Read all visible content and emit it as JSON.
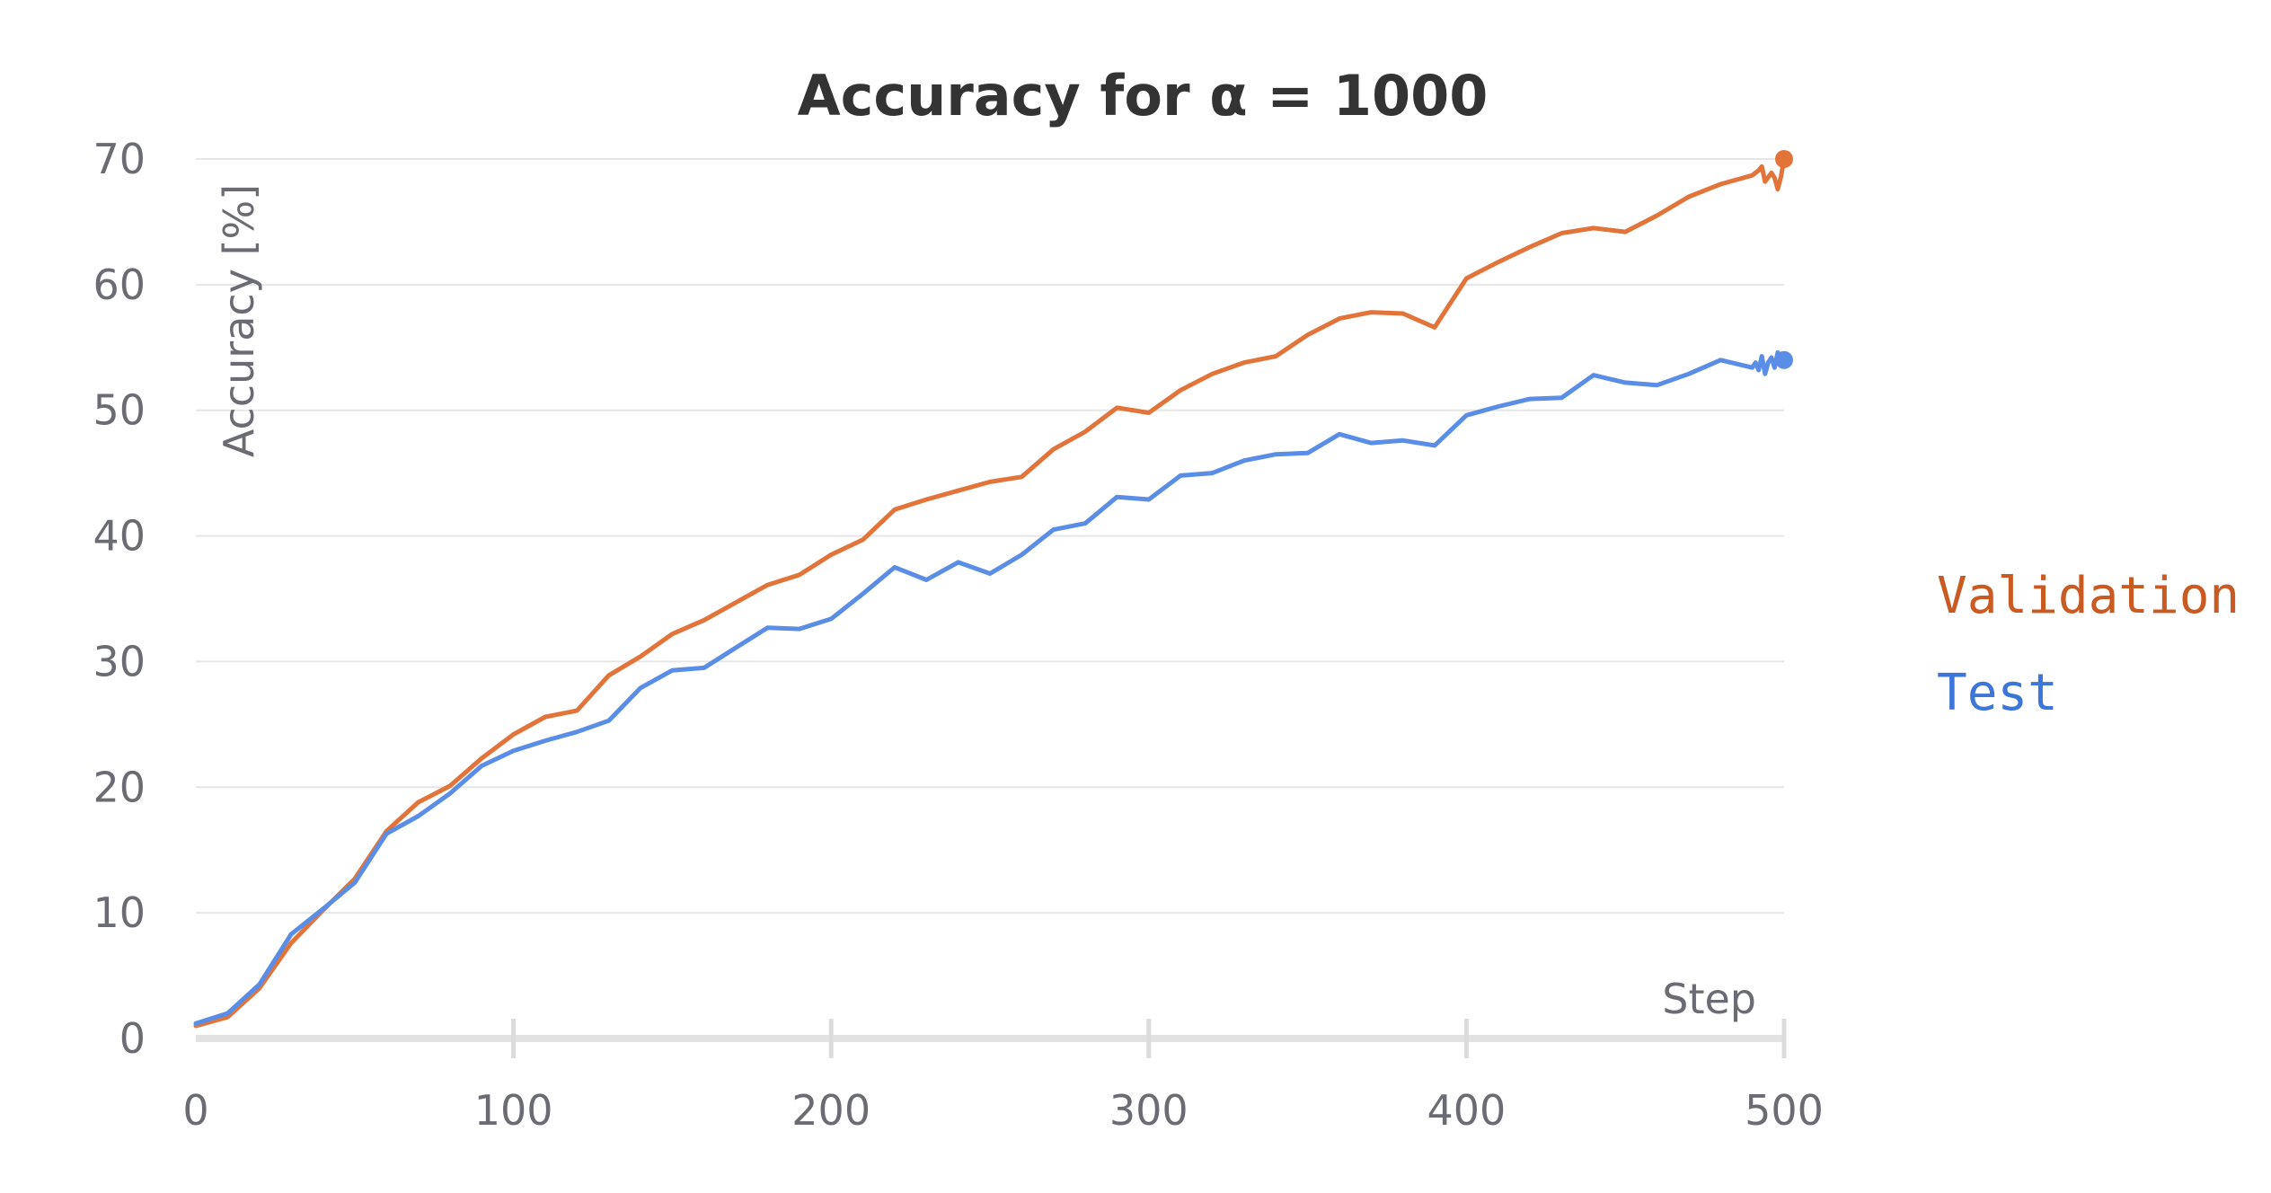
{
  "chart_data": {
    "type": "line",
    "title": "Accuracy for α = 1000",
    "xlabel": "Step",
    "ylabel": "Accuracy [%]",
    "xlim": [
      0,
      500
    ],
    "ylim": [
      0,
      70
    ],
    "x_ticks": [
      0,
      100,
      200,
      300,
      400,
      500
    ],
    "y_ticks": [
      0,
      10,
      20,
      30,
      40,
      50,
      60,
      70
    ],
    "grid": "horizontal",
    "legend_position": "right",
    "series": [
      {
        "name": "Validation",
        "color": "#e2743a",
        "label_color": "#c95a22",
        "points": [
          [
            0,
            1.0
          ],
          [
            10,
            1.7
          ],
          [
            20,
            4.0
          ],
          [
            30,
            7.6
          ],
          [
            40,
            10.2
          ],
          [
            50,
            12.7
          ],
          [
            60,
            16.5
          ],
          [
            70,
            18.8
          ],
          [
            80,
            20.1
          ],
          [
            90,
            22.3
          ],
          [
            100,
            24.2
          ],
          [
            110,
            25.6
          ],
          [
            120,
            26.1
          ],
          [
            130,
            28.9
          ],
          [
            140,
            30.4
          ],
          [
            150,
            32.2
          ],
          [
            160,
            33.3
          ],
          [
            170,
            34.7
          ],
          [
            180,
            36.1
          ],
          [
            190,
            36.9
          ],
          [
            200,
            38.5
          ],
          [
            210,
            39.7
          ],
          [
            220,
            42.1
          ],
          [
            230,
            42.9
          ],
          [
            240,
            43.6
          ],
          [
            250,
            44.3
          ],
          [
            260,
            44.7
          ],
          [
            270,
            46.9
          ],
          [
            280,
            48.3
          ],
          [
            290,
            50.2
          ],
          [
            300,
            49.8
          ],
          [
            310,
            51.6
          ],
          [
            320,
            52.9
          ],
          [
            330,
            53.8
          ],
          [
            340,
            54.3
          ],
          [
            350,
            56.0
          ],
          [
            360,
            57.3
          ],
          [
            370,
            57.8
          ],
          [
            380,
            57.7
          ],
          [
            390,
            56.6
          ],
          [
            400,
            60.5
          ],
          [
            410,
            61.8
          ],
          [
            420,
            63.0
          ],
          [
            430,
            64.1
          ],
          [
            440,
            64.5
          ],
          [
            450,
            64.2
          ],
          [
            460,
            65.5
          ],
          [
            470,
            67.0
          ],
          [
            480,
            68.0
          ],
          [
            490,
            68.7
          ],
          [
            492,
            69.1
          ],
          [
            493,
            69.4
          ],
          [
            494,
            68.2
          ],
          [
            496,
            68.9
          ],
          [
            497,
            68.5
          ],
          [
            498,
            67.6
          ],
          [
            499,
            68.6
          ],
          [
            500,
            70.0
          ]
        ]
      },
      {
        "name": "Test",
        "color": "#5a8ee6",
        "label_color": "#3d76d9",
        "points": [
          [
            0,
            1.2
          ],
          [
            10,
            2.0
          ],
          [
            20,
            4.3
          ],
          [
            30,
            8.3
          ],
          [
            40,
            10.3
          ],
          [
            50,
            12.4
          ],
          [
            60,
            16.3
          ],
          [
            70,
            17.7
          ],
          [
            80,
            19.5
          ],
          [
            90,
            21.7
          ],
          [
            100,
            22.9
          ],
          [
            110,
            23.7
          ],
          [
            120,
            24.4
          ],
          [
            130,
            25.3
          ],
          [
            140,
            27.9
          ],
          [
            150,
            29.3
          ],
          [
            160,
            29.5
          ],
          [
            170,
            31.1
          ],
          [
            180,
            32.7
          ],
          [
            190,
            32.6
          ],
          [
            200,
            33.4
          ],
          [
            210,
            35.4
          ],
          [
            220,
            37.5
          ],
          [
            230,
            36.5
          ],
          [
            240,
            37.9
          ],
          [
            250,
            37.0
          ],
          [
            260,
            38.5
          ],
          [
            270,
            40.5
          ],
          [
            280,
            41.0
          ],
          [
            290,
            43.1
          ],
          [
            300,
            42.9
          ],
          [
            310,
            44.8
          ],
          [
            320,
            45.0
          ],
          [
            330,
            46.0
          ],
          [
            340,
            46.5
          ],
          [
            350,
            46.6
          ],
          [
            360,
            48.1
          ],
          [
            370,
            47.4
          ],
          [
            380,
            47.6
          ],
          [
            390,
            47.2
          ],
          [
            400,
            49.6
          ],
          [
            410,
            50.3
          ],
          [
            420,
            50.9
          ],
          [
            430,
            51.0
          ],
          [
            440,
            52.8
          ],
          [
            450,
            52.2
          ],
          [
            460,
            52.0
          ],
          [
            470,
            52.9
          ],
          [
            480,
            54.0
          ],
          [
            490,
            53.4
          ],
          [
            491,
            53.8
          ],
          [
            492,
            53.2
          ],
          [
            493,
            54.3
          ],
          [
            494,
            52.9
          ],
          [
            495,
            53.8
          ],
          [
            496,
            54.2
          ],
          [
            497,
            53.4
          ],
          [
            498,
            54.6
          ],
          [
            499,
            53.6
          ],
          [
            500,
            54.0
          ]
        ]
      }
    ]
  }
}
